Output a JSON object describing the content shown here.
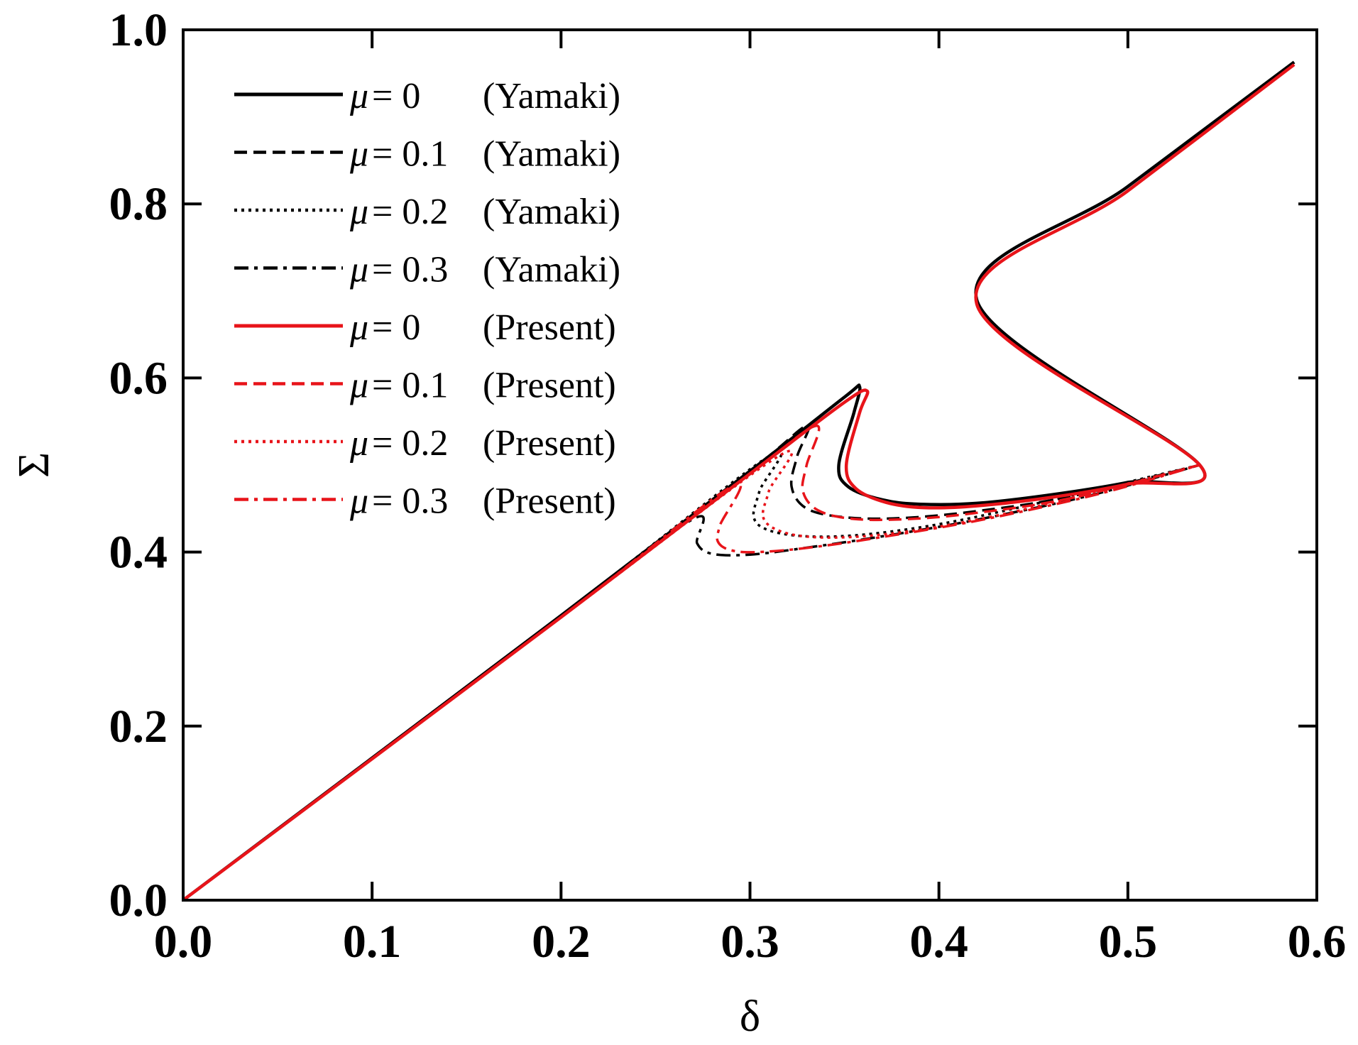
{
  "chart_data": {
    "type": "line",
    "title": "",
    "xlabel": "δ",
    "ylabel": "Σ",
    "xlim": [
      0.0,
      0.6
    ],
    "ylim": [
      0.0,
      1.0
    ],
    "x_ticks": [
      "0.0",
      "0.1",
      "0.2",
      "0.3",
      "0.4",
      "0.5",
      "0.6"
    ],
    "y_ticks": [
      "0.0",
      "0.2",
      "0.4",
      "0.6",
      "0.8",
      "1.0"
    ],
    "grid": false,
    "legend_position": "top-left",
    "colors": {
      "yamaki": "#000000",
      "present": "#e8141a"
    },
    "series": [
      {
        "name": "μ = 0 (Yamaki)",
        "mu": "0",
        "source": "Yamaki",
        "color": "#000000",
        "dash": "solid",
        "points": [
          [
            0,
            0
          ],
          [
            0.2,
            0.327
          ],
          [
            0.3,
            0.493
          ],
          [
            0.35,
            0.578
          ],
          [
            0.358,
            0.59
          ],
          [
            0.355,
            0.56
          ],
          [
            0.347,
            0.5
          ],
          [
            0.352,
            0.475
          ],
          [
            0.37,
            0.46
          ],
          [
            0.39,
            0.455
          ],
          [
            0.42,
            0.456
          ],
          [
            0.46,
            0.466
          ],
          [
            0.5,
            0.48
          ],
          [
            0.538,
            0.5
          ],
          [
            0.42,
            0.69
          ],
          [
            0.5,
            0.82
          ],
          [
            0.588,
            0.963
          ]
        ]
      },
      {
        "name": "μ = 0.1 (Yamaki)",
        "mu": "0.1",
        "source": "Yamaki",
        "color": "#000000",
        "dash": "dashed",
        "points": [
          [
            0,
            0
          ],
          [
            0.2,
            0.327
          ],
          [
            0.3,
            0.493
          ],
          [
            0.33,
            0.545
          ],
          [
            0.325,
            0.51
          ],
          [
            0.322,
            0.475
          ],
          [
            0.33,
            0.45
          ],
          [
            0.35,
            0.44
          ],
          [
            0.38,
            0.439
          ],
          [
            0.42,
            0.447
          ],
          [
            0.47,
            0.464
          ],
          [
            0.538,
            0.5
          ]
        ]
      },
      {
        "name": "μ = 0.2 (Yamaki)",
        "mu": "0.2",
        "source": "Yamaki",
        "color": "#000000",
        "dash": "dotted",
        "points": [
          [
            0,
            0
          ],
          [
            0.2,
            0.327
          ],
          [
            0.31,
            0.51
          ],
          [
            0.305,
            0.47
          ],
          [
            0.302,
            0.44
          ],
          [
            0.31,
            0.425
          ],
          [
            0.33,
            0.418
          ],
          [
            0.36,
            0.42
          ],
          [
            0.4,
            0.432
          ],
          [
            0.45,
            0.455
          ],
          [
            0.538,
            0.5
          ]
        ]
      },
      {
        "name": "μ = 0.3 (Yamaki)",
        "mu": "0.3",
        "source": "Yamaki",
        "color": "#000000",
        "dash": "dashdot",
        "points": [
          [
            0,
            0
          ],
          [
            0.2,
            0.327
          ],
          [
            0.27,
            0.438
          ],
          [
            0.272,
            0.41
          ],
          [
            0.28,
            0.398
          ],
          [
            0.3,
            0.397
          ],
          [
            0.33,
            0.405
          ],
          [
            0.37,
            0.418
          ],
          [
            0.42,
            0.437
          ],
          [
            0.48,
            0.465
          ],
          [
            0.538,
            0.5
          ]
        ]
      },
      {
        "name": "μ = 0 (Present)",
        "mu": "0",
        "source": "Present",
        "color": "#e8141a",
        "dash": "solid",
        "points": [
          [
            0,
            0
          ],
          [
            0.2,
            0.325
          ],
          [
            0.3,
            0.49
          ],
          [
            0.35,
            0.572
          ],
          [
            0.362,
            0.585
          ],
          [
            0.358,
            0.56
          ],
          [
            0.351,
            0.5
          ],
          [
            0.356,
            0.473
          ],
          [
            0.372,
            0.457
          ],
          [
            0.392,
            0.451
          ],
          [
            0.42,
            0.453
          ],
          [
            0.46,
            0.463
          ],
          [
            0.5,
            0.478
          ],
          [
            0.538,
            0.5
          ],
          [
            0.42,
            0.685
          ],
          [
            0.5,
            0.815
          ],
          [
            0.588,
            0.96
          ]
        ]
      },
      {
        "name": "μ = 0.1 (Present)",
        "mu": "0.1",
        "source": "Present",
        "color": "#e8141a",
        "dash": "dashed",
        "points": [
          [
            0,
            0
          ],
          [
            0.2,
            0.325
          ],
          [
            0.3,
            0.49
          ],
          [
            0.335,
            0.545
          ],
          [
            0.33,
            0.5
          ],
          [
            0.328,
            0.47
          ],
          [
            0.336,
            0.448
          ],
          [
            0.355,
            0.438
          ],
          [
            0.385,
            0.438
          ],
          [
            0.42,
            0.445
          ],
          [
            0.47,
            0.462
          ],
          [
            0.538,
            0.5
          ]
        ]
      },
      {
        "name": "μ = 0.2 (Present)",
        "mu": "0.2",
        "source": "Present",
        "color": "#e8141a",
        "dash": "dotted",
        "points": [
          [
            0,
            0
          ],
          [
            0.2,
            0.325
          ],
          [
            0.315,
            0.51
          ],
          [
            0.31,
            0.47
          ],
          [
            0.307,
            0.44
          ],
          [
            0.316,
            0.424
          ],
          [
            0.335,
            0.417
          ],
          [
            0.365,
            0.419
          ],
          [
            0.405,
            0.431
          ],
          [
            0.455,
            0.454
          ],
          [
            0.538,
            0.5
          ]
        ]
      },
      {
        "name": "μ = 0.3 (Present)",
        "mu": "0.3",
        "source": "Present",
        "color": "#e8141a",
        "dash": "dashdot",
        "points": [
          [
            0,
            0
          ],
          [
            0.2,
            0.325
          ],
          [
            0.29,
            0.475
          ],
          [
            0.284,
            0.43
          ],
          [
            0.283,
            0.412
          ],
          [
            0.29,
            0.402
          ],
          [
            0.305,
            0.4
          ],
          [
            0.335,
            0.406
          ],
          [
            0.375,
            0.419
          ],
          [
            0.425,
            0.438
          ],
          [
            0.485,
            0.467
          ],
          [
            0.538,
            0.5
          ]
        ]
      }
    ],
    "legend": [
      {
        "mu_value": "= 0",
        "source": "(Yamaki)",
        "color": "#000000",
        "dash": "solid"
      },
      {
        "mu_value": "= 0.1",
        "source": "(Yamaki)",
        "color": "#000000",
        "dash": "dashed"
      },
      {
        "mu_value": "= 0.2",
        "source": "(Yamaki)",
        "color": "#000000",
        "dash": "dotted"
      },
      {
        "mu_value": "= 0.3",
        "source": "(Yamaki)",
        "color": "#000000",
        "dash": "dashdot"
      },
      {
        "mu_value": "= 0",
        "source": "(Present)",
        "color": "#e8141a",
        "dash": "solid"
      },
      {
        "mu_value": "= 0.1",
        "source": "(Present)",
        "color": "#e8141a",
        "dash": "dashed"
      },
      {
        "mu_value": "= 0.2",
        "source": "(Present)",
        "color": "#e8141a",
        "dash": "dotted"
      },
      {
        "mu_value": "= 0.3",
        "source": "(Present)",
        "color": "#e8141a",
        "dash": "dashdot"
      }
    ]
  }
}
